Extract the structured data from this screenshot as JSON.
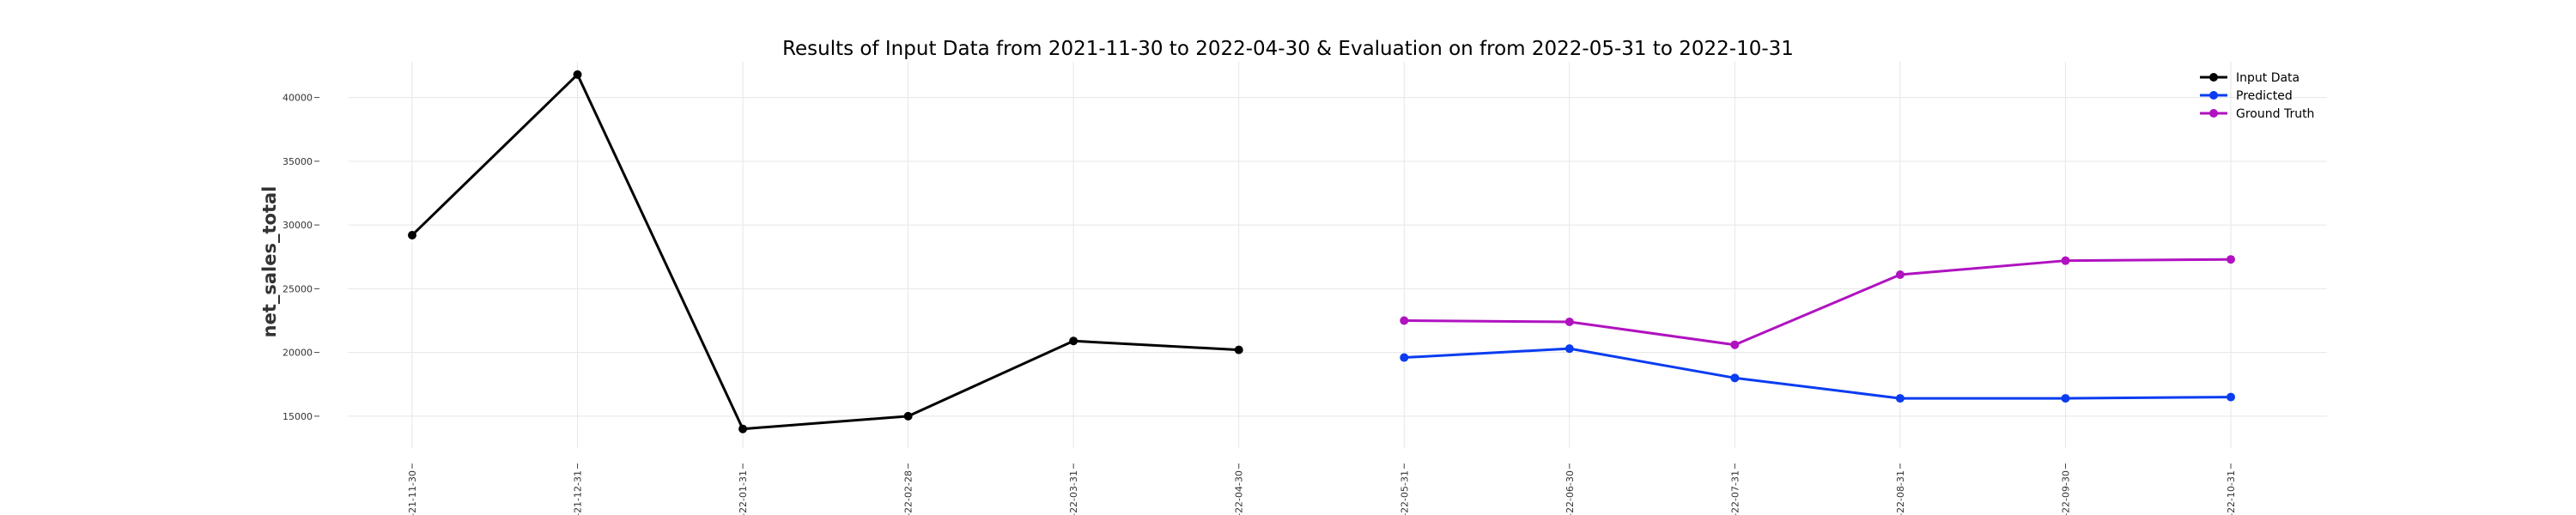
{
  "chart_data": {
    "type": "line",
    "title": "Results of Input Data from 2021-11-30 to 2022-04-30 & Evaluation on from 2022-05-31 to 2022-10-31",
    "xlabel": "",
    "ylabel": "net_sales_total",
    "categories": [
      "2021-11-30",
      "2021-12-31",
      "2022-01-31",
      "2022-02-28",
      "2022-03-31",
      "2022-04-30",
      "2022-05-31",
      "2022-06-30",
      "2022-07-31",
      "2022-08-31",
      "2022-09-30",
      "2022-10-31"
    ],
    "tick_labels": [
      "-21-11-30",
      "-21-12-31",
      "-22-01-31",
      "-22-02-28",
      "-22-03-31",
      "-22-04-30",
      "-22-05-31",
      "-22-06-30",
      "-22-07-31",
      "-22-08-31",
      "-22-09-30",
      "-22-10-31"
    ],
    "yticks": [
      15000,
      20000,
      25000,
      30000,
      35000,
      40000
    ],
    "ylim": [
      12500,
      42800
    ],
    "grid": true,
    "legend_position": "top-right",
    "series": [
      {
        "name": "Input Data",
        "color": "#000000",
        "x": [
          "2021-11-30",
          "2021-12-31",
          "2022-01-31",
          "2022-02-28",
          "2022-03-31",
          "2022-04-30"
        ],
        "values": [
          29200,
          41800,
          14000,
          15000,
          20900,
          20200
        ]
      },
      {
        "name": "Predicted",
        "color": "#0a3cf0",
        "x": [
          "2022-05-31",
          "2022-06-30",
          "2022-07-31",
          "2022-08-31",
          "2022-09-30",
          "2022-10-31"
        ],
        "values": [
          19600,
          20300,
          18000,
          16400,
          16400,
          16500
        ]
      },
      {
        "name": "Ground Truth",
        "color": "#b012c0",
        "x": [
          "2022-05-31",
          "2022-06-30",
          "2022-07-31",
          "2022-08-31",
          "2022-09-30",
          "2022-10-31"
        ],
        "values": [
          22500,
          22400,
          20600,
          26100,
          27200,
          27300
        ]
      }
    ]
  }
}
